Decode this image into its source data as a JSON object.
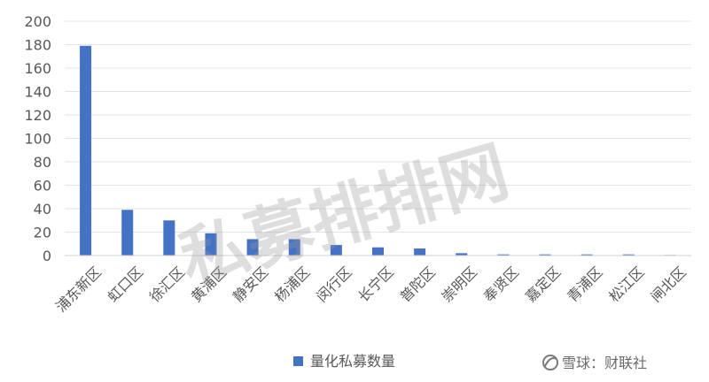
{
  "chart_data": {
    "type": "bar",
    "categories": [
      "浦东新区",
      "虹口区",
      "徐汇区",
      "黄浦区",
      "静安区",
      "杨浦区",
      "闵行区",
      "长宁区",
      "普陀区",
      "崇明区",
      "奉贤区",
      "嘉定区",
      "青浦区",
      "松江区",
      "闸北区"
    ],
    "series": [
      {
        "name": "量化私募数量",
        "values": [
          179,
          39,
          30,
          19,
          14,
          14,
          9,
          7,
          6,
          2,
          1,
          1,
          1,
          1,
          0.5
        ]
      }
    ],
    "ylim": [
      0,
      200
    ],
    "yticks": [
      0,
      20,
      40,
      60,
      80,
      100,
      120,
      140,
      160,
      180,
      200
    ],
    "grid": true,
    "legend_position": "bottom",
    "bar_color": "#4472c4"
  },
  "watermark": {
    "text": "私募排排网"
  },
  "footer": {
    "text": "雪球：财联社"
  }
}
